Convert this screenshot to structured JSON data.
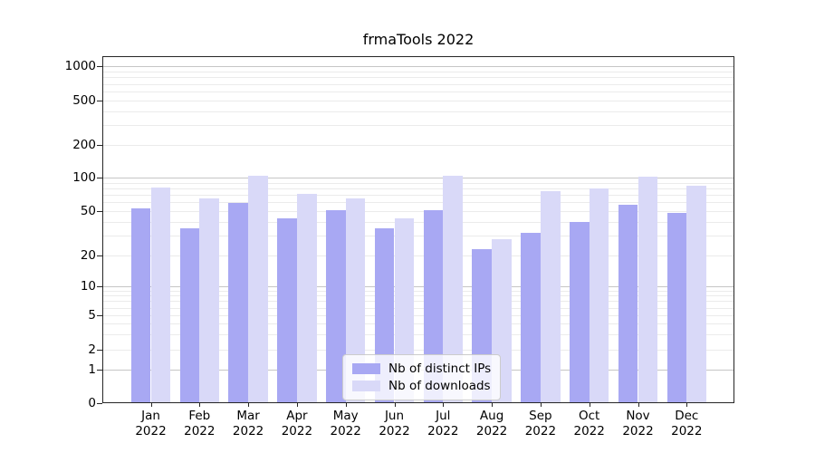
{
  "title": "frmaTools 2022",
  "chart_data": {
    "type": "bar",
    "title": "frmaTools 2022",
    "yscale": "symlog",
    "grid": true,
    "ylim": [
      0,
      1250
    ],
    "ytick_labels": [
      "0",
      "1",
      "2",
      "5",
      "10",
      "20",
      "50",
      "100",
      "200",
      "500",
      "1000"
    ],
    "categories": [
      "Jan 2022",
      "Feb 2022",
      "Mar 2022",
      "Apr 2022",
      "May 2022",
      "Jun 2022",
      "Jul 2022",
      "Aug 2022",
      "Sep 2022",
      "Oct 2022",
      "Nov 2022",
      "Dec 2022"
    ],
    "month_labels": [
      "Jan",
      "Feb",
      "Mar",
      "Apr",
      "May",
      "Jun",
      "Jul",
      "Aug",
      "Sep",
      "Oct",
      "Nov",
      "Dec"
    ],
    "year_label": "2022",
    "series": [
      {
        "name": "Nb of distinct IPs",
        "color": "#a8a8f3",
        "values": [
          53,
          35,
          59,
          43,
          51,
          35,
          51,
          23,
          32,
          40,
          57,
          48
        ]
      },
      {
        "name": "Nb of downloads",
        "color": "#d9d9f8",
        "values": [
          81,
          65,
          103,
          72,
          65,
          43,
          103,
          28,
          75,
          80,
          101,
          85
        ]
      }
    ],
    "legend_position": "lower center"
  },
  "legend": {
    "items": [
      {
        "label": "Nb of distinct IPs"
      },
      {
        "label": "Nb of downloads"
      }
    ]
  }
}
